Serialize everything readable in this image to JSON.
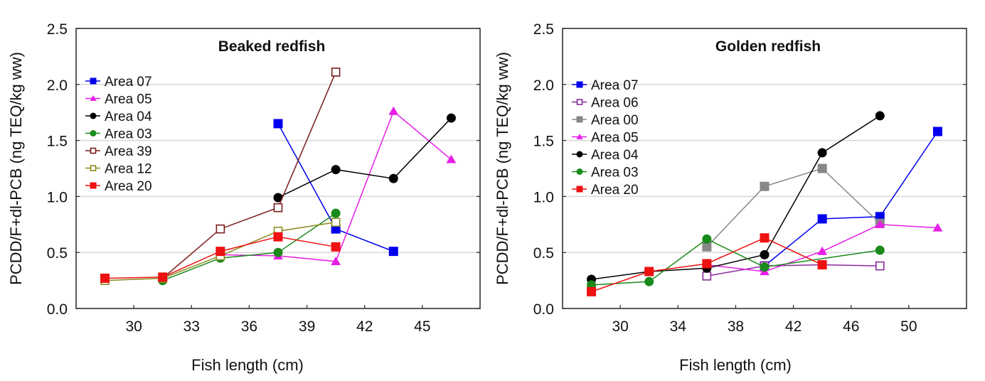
{
  "chart_data": [
    {
      "type": "line",
      "title": "Beaked redfish",
      "xlabel": "Fish length (cm)",
      "ylabel": "PCDD/F+dl-PCB (ng TEQ/kg ww)",
      "xlim": [
        27,
        48
      ],
      "ylim": [
        0,
        2.5
      ],
      "xticks": [
        30,
        33,
        36,
        39,
        42,
        45
      ],
      "xtick_labels": [
        "30",
        "33",
        "36",
        "39",
        "42",
        "45"
      ],
      "yticks": [
        0,
        0.5,
        1.0,
        1.5,
        2.0,
        2.5
      ],
      "ytick_labels": [
        "0.0",
        "0.5",
        "1.0",
        "1.5",
        "2.0",
        "2.5"
      ],
      "grid": "horizontal",
      "legend_position": "top-left",
      "series": [
        {
          "name": "Area 07",
          "color": "#0000ee",
          "marker": "square-filled",
          "x": [
            37.5,
            40.5,
            43.5
          ],
          "y": [
            1.65,
            0.71,
            0.51
          ]
        },
        {
          "name": "Area 05",
          "color": "#e61ee6",
          "marker": "triangle",
          "x": [
            34.5,
            37.5,
            40.5,
            43.5,
            46.5
          ],
          "y": [
            0.48,
            0.47,
            0.42,
            1.76,
            1.33
          ]
        },
        {
          "name": "Area 04",
          "color": "#000000",
          "marker": "circle",
          "x": [
            37.5,
            40.5,
            43.5,
            46.5
          ],
          "y": [
            0.99,
            1.24,
            1.16,
            1.7
          ]
        },
        {
          "name": "Area 03",
          "color": "#1a8a1a",
          "marker": "circle",
          "x": [
            31.5,
            34.5,
            37.5,
            40.5
          ],
          "y": [
            0.25,
            0.45,
            0.5,
            0.85
          ]
        },
        {
          "name": "Area 39",
          "color": "#7a1a1a",
          "marker": "square-open",
          "x": [
            31.5,
            34.5,
            37.5,
            40.5
          ],
          "y": [
            0.27,
            0.71,
            0.9,
            2.11
          ]
        },
        {
          "name": "Area 12",
          "color": "#8a8a20",
          "marker": "square-open",
          "x": [
            28.5,
            31.5,
            34.5,
            37.5,
            40.5
          ],
          "y": [
            0.25,
            0.27,
            0.47,
            0.69,
            0.77
          ]
        },
        {
          "name": "Area 20",
          "color": "#ee1111",
          "marker": "square-filled",
          "x": [
            28.5,
            31.5,
            34.5,
            37.5,
            40.5
          ],
          "y": [
            0.27,
            0.28,
            0.51,
            0.64,
            0.55
          ]
        }
      ]
    },
    {
      "type": "line",
      "title": "Golden redfish",
      "xlabel": "Fish length (cm)",
      "ylabel": "PCDD/F+dl-PCB (ng TEQ/kg ww)",
      "xlim": [
        26,
        54
      ],
      "ylim": [
        0,
        2.5
      ],
      "xticks": [
        30,
        34,
        38,
        42,
        46,
        50
      ],
      "xtick_labels": [
        "30",
        "34",
        "38",
        "42",
        "46",
        "50"
      ],
      "yticks": [
        0,
        0.5,
        1.0,
        1.5,
        2.0,
        2.5
      ],
      "ytick_labels": [
        "0.0",
        "0.5",
        "1.0",
        "1.5",
        "2.0",
        "2.5"
      ],
      "grid": "horizontal",
      "legend_position": "top-left",
      "series": [
        {
          "name": "Area 07",
          "color": "#0000ee",
          "marker": "square-filled",
          "x": [
            40,
            44,
            48,
            52
          ],
          "y": [
            0.38,
            0.8,
            0.82,
            1.58
          ]
        },
        {
          "name": "Area 06",
          "color": "#8a2a9a",
          "marker": "square-open",
          "x": [
            36,
            40,
            44,
            48
          ],
          "y": [
            0.29,
            0.38,
            0.39,
            0.38
          ]
        },
        {
          "name": "Area 00",
          "color": "#888888",
          "marker": "square-filled",
          "x": [
            36,
            40,
            44,
            48
          ],
          "y": [
            0.55,
            1.09,
            1.25,
            0.76
          ]
        },
        {
          "name": "Area 05",
          "color": "#e61ee6",
          "marker": "triangle",
          "x": [
            36,
            40,
            44,
            48,
            52
          ],
          "y": [
            0.39,
            0.33,
            0.51,
            0.75,
            0.72
          ]
        },
        {
          "name": "Area 04",
          "color": "#000000",
          "marker": "circle",
          "x": [
            28,
            32,
            36,
            40,
            44,
            48
          ],
          "y": [
            0.26,
            0.33,
            0.36,
            0.48,
            1.39,
            1.72
          ]
        },
        {
          "name": "Area 03",
          "color": "#1a8a1a",
          "marker": "circle",
          "x": [
            28,
            32,
            36,
            40,
            48
          ],
          "y": [
            0.21,
            0.24,
            0.62,
            0.37,
            0.52
          ]
        },
        {
          "name": "Area 20",
          "color": "#ee1111",
          "marker": "square-filled",
          "x": [
            28,
            32,
            36,
            40,
            44
          ],
          "y": [
            0.15,
            0.33,
            0.4,
            0.63,
            0.39
          ]
        }
      ]
    }
  ]
}
